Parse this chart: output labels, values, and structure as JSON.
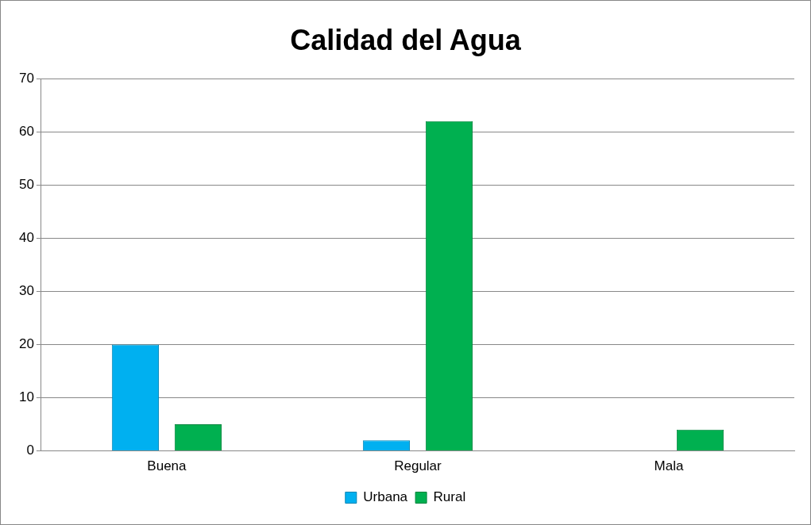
{
  "chart_data": {
    "type": "bar",
    "title": "Calidad del Agua",
    "categories": [
      "Buena",
      "Regular",
      "Mala"
    ],
    "series": [
      {
        "name": "Urbana",
        "color": "#00b0f0",
        "values": [
          20,
          2,
          0
        ]
      },
      {
        "name": "Rural",
        "color": "#00b050",
        "values": [
          5,
          62,
          4
        ]
      }
    ],
    "ylim": [
      0,
      70
    ],
    "yticks": [
      0,
      10,
      20,
      30,
      40,
      50,
      60,
      70
    ],
    "grid": "y",
    "legend": "bottom"
  }
}
